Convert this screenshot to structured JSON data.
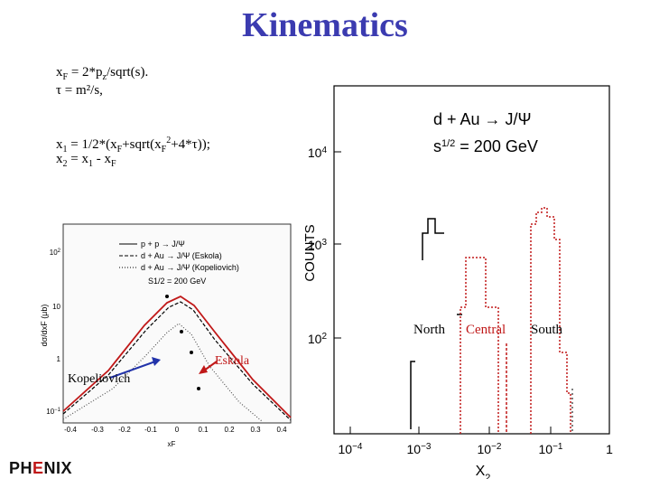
{
  "slide": {
    "title": "Kinematics",
    "title_color": "#3b3bb0",
    "equations": {
      "xf_eq": [
        "x",
        "F",
        " = 2*p",
        "z",
        "/sqrt(s)."
      ],
      "tau_eq": "τ = m²/s,",
      "x1_eq": [
        "x",
        "1",
        " = 1/2*(x",
        "F",
        "+sqrt(x",
        "F",
        "2",
        "+4*τ));"
      ],
      "x2_eq": [
        "x",
        "2",
        " = x",
        "1",
        " - x",
        "F"
      ]
    }
  },
  "right_plot": {
    "ylabel": "COUNTS",
    "xlabel": "X2",
    "legend_line1": "d + Au → J/Ψ",
    "legend_line2": "s1/2 = 200 GeV",
    "y_ticks": [
      "10^4",
      "10^3",
      "10^2"
    ],
    "x_ticks": [
      "10^-4",
      "10^-3",
      "10^-2",
      "10^-1",
      "1"
    ],
    "x_scale": "log",
    "y_scale": "log",
    "region_labels": {
      "north": "North",
      "central": "Central",
      "south": "South"
    },
    "colors": {
      "north": "#000000",
      "central": "#c01818",
      "south": "#c01818",
      "label_central": "#c01818"
    }
  },
  "left_plot": {
    "legend": [
      "p + p → J/Ψ",
      "d + Au → J/Ψ (Eskola)",
      "d + Au → J/Ψ (Kopeliovich)"
    ],
    "energy": "S1/2 = 200 GeV",
    "ylabel": "dσ/dxF (μb)",
    "xlabel": "xF",
    "x_ticks": [
      "-0.4",
      "-0.3",
      "-0.2",
      "-0.1",
      "0",
      "0.1",
      "0.2",
      "0.3",
      "0.4"
    ],
    "y_ticks": [
      "10^2",
      "10",
      "1",
      "10^-1"
    ],
    "annotation_kopeliovich": "Kopeliovich",
    "annotation_eskola": "Eskola",
    "colors": {
      "eskola": "#c01818",
      "kopeliovich": "#2233aa"
    }
  },
  "logo": {
    "pre": "PH",
    "mid": "E",
    "post": "NIX"
  }
}
